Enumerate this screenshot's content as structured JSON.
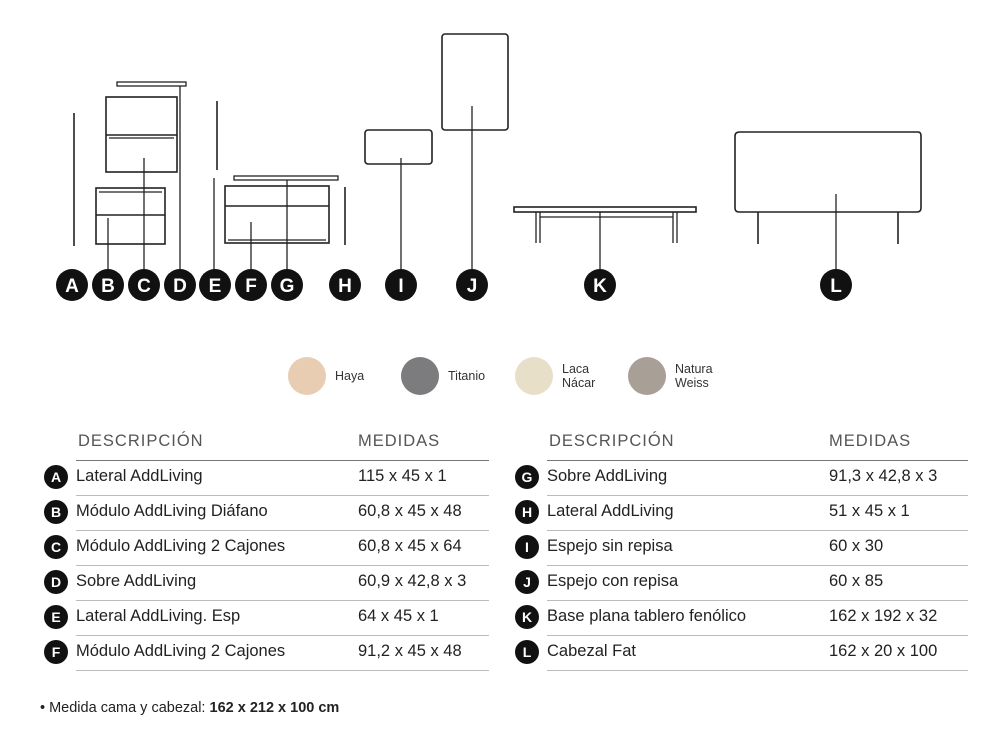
{
  "badges": [
    "A",
    "B",
    "C",
    "D",
    "E",
    "F",
    "G",
    "H",
    "I",
    "J",
    "K",
    "L"
  ],
  "finishes": [
    {
      "name": "Haya",
      "lines": [
        "Haya"
      ],
      "color": "#e8cdb2"
    },
    {
      "name": "Titanio",
      "lines": [
        "Titanio"
      ],
      "color": "#7c7c7e"
    },
    {
      "name": "Laca Nácar",
      "lines": [
        "Laca",
        "Nácar"
      ],
      "color": "#e8dfc8"
    },
    {
      "name": "Natura Weiss",
      "lines": [
        "Natura",
        "Weiss"
      ],
      "color": "#a89f96"
    }
  ],
  "table_headers": {
    "description": "DESCRIPCIÓN",
    "measures": "MEDIDAS"
  },
  "left_table": [
    {
      "letter": "A",
      "description": "Lateral AddLiving",
      "measures": "115 x 45 x 1"
    },
    {
      "letter": "B",
      "description": "Módulo AddLiving Diáfano",
      "measures": "60,8 x 45 x 48"
    },
    {
      "letter": "C",
      "description": "Módulo AddLiving 2 Cajones",
      "measures": "60,8 x 45 x 64"
    },
    {
      "letter": "D",
      "description": "Sobre AddLiving",
      "measures": "60,9 x 42,8 x 3"
    },
    {
      "letter": "E",
      "description": "Lateral AddLiving. Esp",
      "measures": "64 x 45 x 1"
    },
    {
      "letter": "F",
      "description": "Módulo AddLiving 2 Cajones",
      "measures": "91,2 x 45 x 48"
    }
  ],
  "right_table": [
    {
      "letter": "G",
      "description": "Sobre AddLiving",
      "measures": "91,3 x 42,8 x 3"
    },
    {
      "letter": "H",
      "description": "Lateral AddLiving",
      "measures": "51 x 45 x 1"
    },
    {
      "letter": "I",
      "description": "Espejo sin repisa",
      "measures": "60 x 30"
    },
    {
      "letter": "J",
      "description": "Espejo con repisa",
      "measures": "60 x 85"
    },
    {
      "letter": "K",
      "description": "Base plana tablero fenólico",
      "measures": "162 x 192 x 32"
    },
    {
      "letter": "L",
      "description": "Cabezal Fat",
      "measures": "162 x 20 x 100"
    }
  ],
  "footnote": {
    "prefix": "• Medida cama y cabezal: ",
    "value": "162 x 212 x 100 cm"
  }
}
